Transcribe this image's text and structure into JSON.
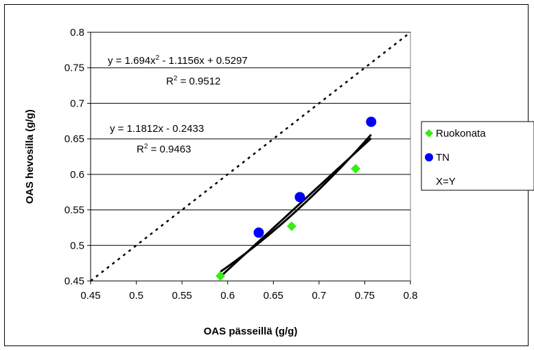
{
  "chart_data": {
    "type": "scatter",
    "xlabel": "OAS pässeillä (g/g)",
    "ylabel": "OAS hevosilla (g/g)",
    "xlim": [
      0.45,
      0.8
    ],
    "ylim": [
      0.45,
      0.8
    ],
    "x_ticks": [
      "0.45",
      "0.5",
      "0.55",
      "0.6",
      "0.65",
      "0.7",
      "0.75",
      "0.8"
    ],
    "y_ticks": [
      "0.45",
      "0.5",
      "0.55",
      "0.6",
      "0.65",
      "0.7",
      "0.75",
      "0.8"
    ],
    "grid": "horizontal",
    "legend_position": "right",
    "series": [
      {
        "name": "Ruokonata",
        "marker": "diamond",
        "color": "#33ee11",
        "x": [
          0.592,
          0.67,
          0.74
        ],
        "y": [
          0.457,
          0.527,
          0.608
        ]
      },
      {
        "name": "TN",
        "marker": "circle",
        "color": "#0000ff",
        "x": [
          0.634,
          0.679,
          0.757
        ],
        "y": [
          0.518,
          0.568,
          0.674
        ]
      },
      {
        "name": "X=Y",
        "line": "dotted",
        "color": "#000000",
        "x": [
          0.45,
          0.8
        ],
        "y": [
          0.45,
          0.8
        ]
      }
    ],
    "trendlines": [
      {
        "type": "polynomial",
        "coef": [
          1.694,
          -1.1156,
          0.5297
        ],
        "x_range": [
          0.592,
          0.757
        ]
      },
      {
        "type": "linear",
        "slope": 1.1812,
        "intercept": -0.2433,
        "x_range": [
          0.592,
          0.757
        ]
      }
    ],
    "annotations": {
      "poly_eq": "y = 1.694x",
      "poly_eq_sup": "2",
      "poly_eq_rest": " - 1.1156x + 0.5297",
      "poly_r2_label": "R",
      "poly_r2_sup": "2",
      "poly_r2_value": " = 0.9512",
      "lin_eq": "y = 1.1812x - 0.2433",
      "lin_r2_label": "R",
      "lin_r2_sup": "2",
      "lin_r2_value": " = 0.9463"
    }
  }
}
